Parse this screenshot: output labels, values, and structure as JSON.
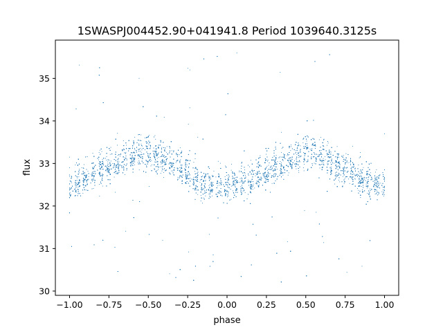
{
  "chart_data": {
    "type": "scatter",
    "title": "1SWASPJ004452.90+041941.8 Period 1039640.3125s",
    "xlabel": "phase",
    "ylabel": "flux",
    "xlim": [
      -1.09,
      1.09
    ],
    "ylim": [
      29.9,
      35.9
    ],
    "x_ticks": [
      -1.0,
      -0.75,
      -0.5,
      -0.25,
      0.0,
      0.25,
      0.5,
      0.75,
      1.0
    ],
    "x_tick_labels": [
      "−1.00",
      "−0.75",
      "−0.50",
      "−0.25",
      "0.00",
      "0.25",
      "0.50",
      "0.75",
      "1.00"
    ],
    "y_ticks": [
      30,
      31,
      32,
      33,
      34,
      35
    ],
    "y_tick_labels": [
      "30",
      "31",
      "32",
      "33",
      "34",
      "35"
    ],
    "grid": false,
    "marker_color": "#1f77b4",
    "series": [
      {
        "x": [
          -1.0,
          -0.95,
          -0.9,
          -0.85,
          -0.8,
          -0.75,
          -0.7,
          -0.65,
          -0.6,
          -0.55,
          -0.5,
          -0.45,
          -0.4,
          -0.35,
          -0.3,
          -0.25,
          -0.2,
          -0.15,
          -0.1,
          -0.05,
          0.0,
          0.05,
          0.1,
          0.15,
          0.2,
          0.25,
          0.3,
          0.35,
          0.4,
          0.45,
          0.5,
          0.55,
          0.6,
          0.65,
          0.7,
          0.75,
          0.8,
          0.85,
          0.9,
          0.95,
          1.0
        ],
        "y_median": [
          32.5,
          32.55,
          32.65,
          32.75,
          32.9,
          32.95,
          33.0,
          33.05,
          33.15,
          33.25,
          33.3,
          33.2,
          33.1,
          33.0,
          32.9,
          32.75,
          32.55,
          32.45,
          32.45,
          32.5,
          32.45,
          32.5,
          32.55,
          32.6,
          32.7,
          32.8,
          32.9,
          33.0,
          33.1,
          33.2,
          33.3,
          33.25,
          33.15,
          33.05,
          32.95,
          32.85,
          32.75,
          32.65,
          32.55,
          32.5,
          32.5
        ],
        "y_spread_low": [
          32.0,
          32.05,
          32.1,
          32.15,
          32.25,
          32.35,
          32.45,
          32.55,
          32.6,
          32.65,
          32.6,
          32.5,
          32.45,
          32.35,
          32.3,
          32.2,
          32.05,
          31.95,
          31.9,
          31.9,
          31.9,
          31.9,
          31.95,
          32.0,
          32.1,
          32.2,
          32.3,
          32.4,
          32.5,
          32.6,
          32.65,
          32.6,
          32.55,
          32.45,
          32.35,
          32.25,
          32.15,
          32.05,
          32.0,
          31.95,
          32.0
        ],
        "y_spread_high": [
          33.2,
          33.3,
          33.4,
          33.5,
          33.6,
          33.7,
          33.75,
          33.85,
          33.9,
          33.95,
          34.0,
          33.9,
          33.8,
          33.7,
          33.6,
          33.45,
          33.25,
          33.1,
          33.0,
          33.0,
          33.1,
          33.15,
          33.25,
          33.3,
          33.4,
          33.5,
          33.6,
          33.7,
          33.8,
          33.9,
          34.0,
          33.9,
          33.85,
          33.75,
          33.65,
          33.55,
          33.45,
          33.35,
          33.25,
          33.2,
          33.2
        ],
        "y_outlier_min": 30.2,
        "y_outlier_max": 35.6
      }
    ]
  }
}
